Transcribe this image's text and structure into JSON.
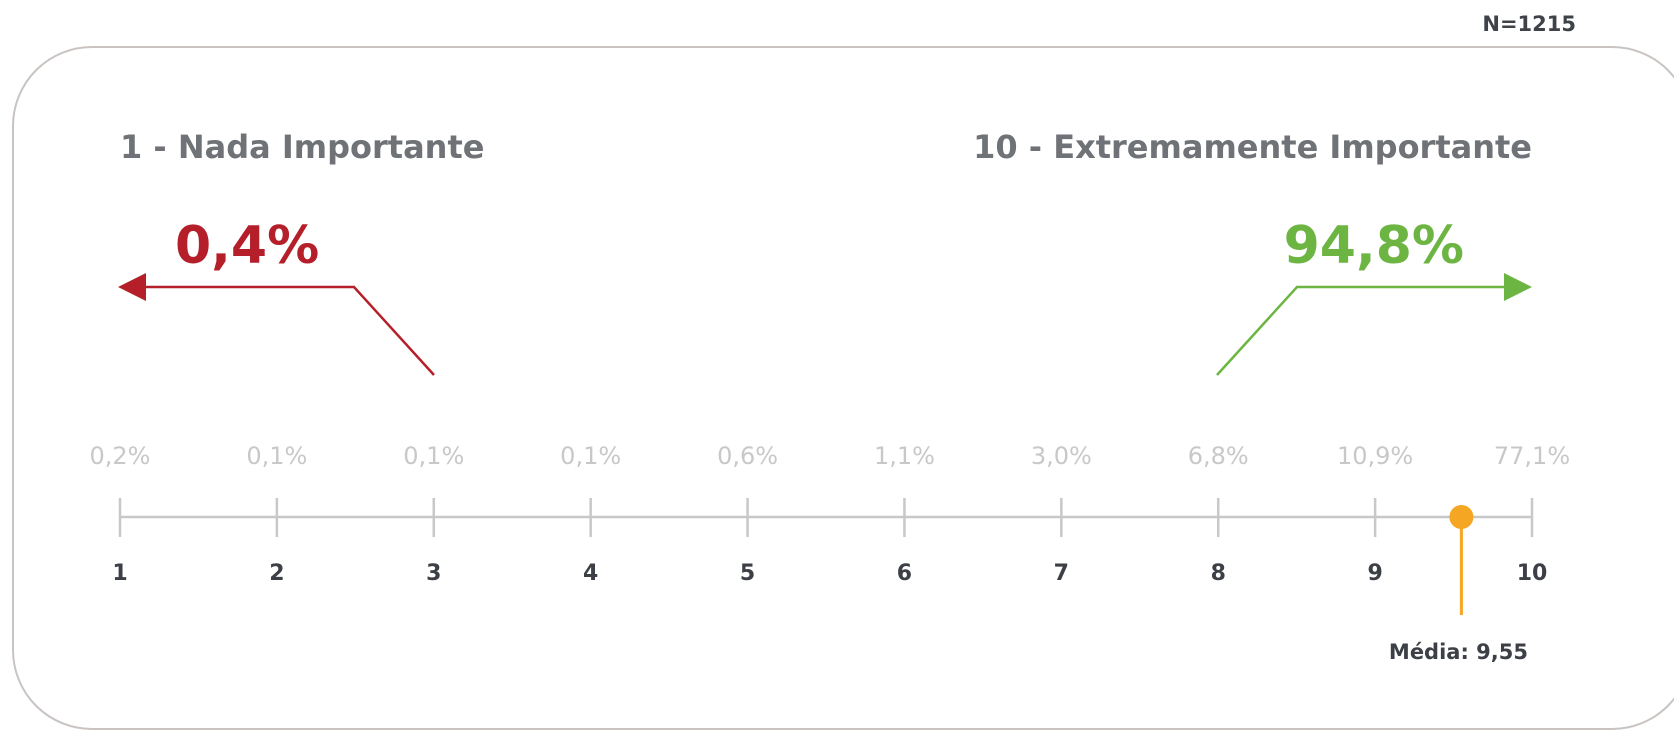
{
  "sample": "N=1215",
  "chart_data": {
    "type": "scale-distribution",
    "categories": [
      "1",
      "2",
      "3",
      "4",
      "5",
      "6",
      "7",
      "8",
      "9",
      "10"
    ],
    "values": [
      0.2,
      0.1,
      0.1,
      0.1,
      0.6,
      1.1,
      3.0,
      6.8,
      10.9,
      77.1
    ],
    "value_labels": [
      "0,2%",
      "0,1%",
      "0,1%",
      "0,1%",
      "0,6%",
      "1,1%",
      "3,0%",
      "6,8%",
      "10,9%",
      "77,1%"
    ],
    "left_heading": "1 - Nada Importante",
    "right_heading": "10 - Extremamente Importante",
    "left_summary": "0,4%",
    "right_summary": "94,8%",
    "mean": 9.55,
    "mean_label": "Média: 9,55",
    "colors": {
      "left": "#b51f2a",
      "right": "#6db542",
      "mean": "#f5a623",
      "axis": "#c8c8c8",
      "pct": "#c8c8c8",
      "tick": "#3c4046",
      "heading": "#6f7276"
    }
  }
}
